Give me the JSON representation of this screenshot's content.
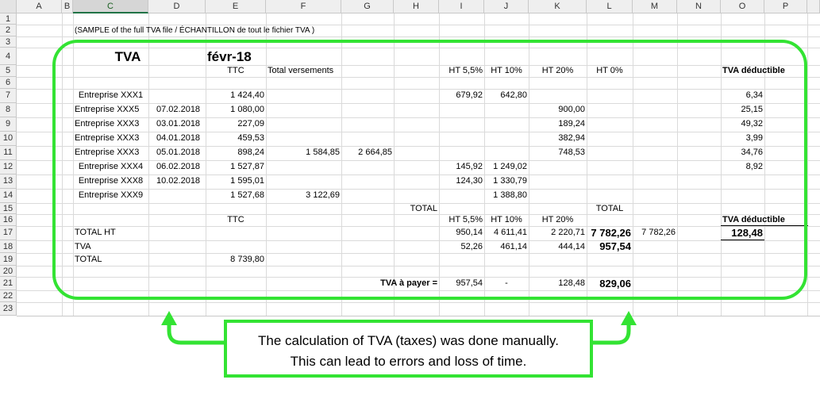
{
  "columns": [
    "A",
    "B",
    "C",
    "D",
    "E",
    "F",
    "G",
    "H",
    "I",
    "J",
    "K",
    "L",
    "M",
    "N",
    "O",
    "P"
  ],
  "rows": [
    "1",
    "2",
    "3",
    "4",
    "5",
    "6",
    "7",
    "8",
    "9",
    "10",
    "11",
    "12",
    "13",
    "14",
    "15",
    "16",
    "17",
    "18",
    "19",
    "20",
    "21",
    "22",
    "23"
  ],
  "selected_column": "C",
  "note": "(SAMPLE of the full TVA file  / ÉCHANTILLON de tout le fichier TVA )",
  "title": "TVA",
  "period": "févr-18",
  "headers": {
    "ttc": "TTC",
    "total_versements": "Total versements",
    "ht55": "HT 5,5%",
    "ht10": "HT 10%",
    "ht20": "HT 20%",
    "ht0": "HT 0%",
    "tva_deductible": "TVA déductible"
  },
  "entries": [
    {
      "name": "Entreprise XXX1",
      "date": "",
      "ttc": "1 424,40",
      "versement": "",
      "g": "",
      "ht55": "679,92",
      "ht10": "642,80",
      "ht20": "",
      "tva": "6,34"
    },
    {
      "name": "Entreprise XXX5",
      "date": "07.02.2018",
      "ttc": "1 080,00",
      "versement": "",
      "g": "",
      "ht55": "",
      "ht10": "",
      "ht20": "900,00",
      "tva": "25,15"
    },
    {
      "name": "Entreprise XXX3",
      "date": "03.01.2018",
      "ttc": "227,09",
      "versement": "",
      "g": "",
      "ht55": "",
      "ht10": "",
      "ht20": "189,24",
      "tva": "49,32"
    },
    {
      "name": "Entreprise XXX3",
      "date": "04.01.2018",
      "ttc": "459,53",
      "versement": "",
      "g": "",
      "ht55": "",
      "ht10": "",
      "ht20": "382,94",
      "tva": "3,99"
    },
    {
      "name": "Entreprise XXX3",
      "date": "05.01.2018",
      "ttc": "898,24",
      "versement": "1 584,85",
      "g": "2 664,85",
      "ht55": "",
      "ht10": "",
      "ht20": "748,53",
      "tva": "34,76"
    },
    {
      "name": "Entreprise XXX4",
      "date": "06.02.2018",
      "ttc": "1 527,87",
      "versement": "",
      "g": "",
      "ht55": "145,92",
      "ht10": "1 249,02",
      "ht20": "",
      "tva": "8,92"
    },
    {
      "name": "Entreprise XXX8",
      "date": "10.02.2018",
      "ttc": "1 595,01",
      "versement": "",
      "g": "",
      "ht55": "124,30",
      "ht10": "1 330,79",
      "ht20": "",
      "tva": ""
    },
    {
      "name": "Entreprise XXX9",
      "date": "",
      "ttc": "1 527,68",
      "versement": "3 122,69",
      "g": "",
      "ht55": "",
      "ht10": "1 388,80",
      "ht20": "",
      "tva": ""
    }
  ],
  "row15": {
    "total_h": "TOTAL",
    "total_l": "TOTAL"
  },
  "row16": {
    "ttc": "TTC",
    "ht55": "HT 5,5%",
    "ht10": "HT 10%",
    "ht20": "HT 20%",
    "tva_deductible": "TVA déductible"
  },
  "total_ht": {
    "label": "TOTAL HT",
    "ht55": "950,14",
    "ht10": "4 611,41",
    "ht20": "2 220,71",
    "total": "7 782,26",
    "m": "7 782,26",
    "tva": "128,48"
  },
  "tva_row": {
    "label": "TVA",
    "ht55": "52,26",
    "ht10": "461,14",
    "ht20": "444,14",
    "total": "957,54"
  },
  "total_row": {
    "label": "TOTAL",
    "ttc": "8 739,80"
  },
  "payer_row": {
    "label": "TVA à payer =",
    "ht55": "957,54",
    "ht10": "-",
    "ht20": "128,48",
    "total": "829,06"
  },
  "callout": {
    "line1": "The calculation of TVA (taxes) was done manually.",
    "line2": "This can lead to errors and loss of time."
  },
  "colors": {
    "highlight": "#33e333",
    "grid": "#dadada",
    "header_bg": "#efefef",
    "selected_header": "#217346"
  }
}
